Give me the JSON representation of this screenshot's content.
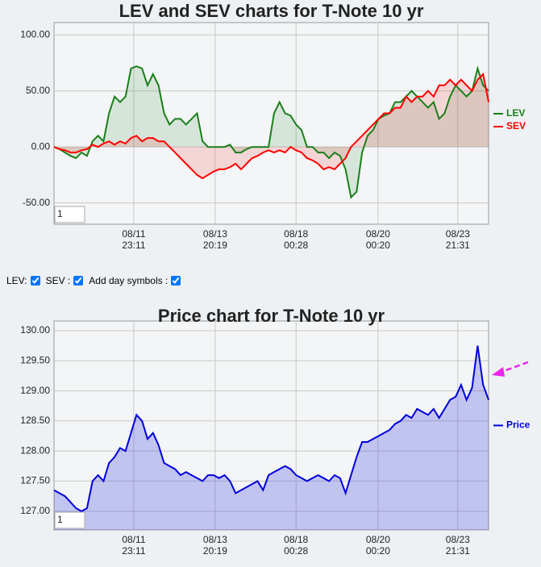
{
  "chart_data": [
    {
      "type": "line",
      "title": "LEV and SEV charts for T-Note 10 yr",
      "range_input": "1",
      "xlim": [
        0,
        79
      ],
      "xticks": [
        {
          "value": 14.5,
          "label": [
            "08/11",
            "23:11"
          ]
        },
        {
          "value": 29.3,
          "label": [
            "08/13",
            "20:19"
          ]
        },
        {
          "value": 44,
          "label": [
            "08/18",
            "00:28"
          ]
        },
        {
          "value": 58.9,
          "label": [
            "08/20",
            "00:20"
          ]
        },
        {
          "value": 73.4,
          "label": [
            "08/23",
            "21:31"
          ]
        }
      ],
      "ylim": [
        -69,
        111
      ],
      "yticks": [
        {
          "value": -50,
          "label": "-50.00"
        },
        {
          "value": 0,
          "label": "0.00"
        },
        {
          "value": 50,
          "label": "50.00"
        },
        {
          "value": 100,
          "label": "100.00"
        }
      ],
      "grid": true,
      "legend": "right",
      "fill": true,
      "series": [
        {
          "name": "LEV",
          "color": "#1a7f1a",
          "values": [
            0,
            -2,
            -5,
            -8,
            -10,
            -5,
            -8,
            5,
            10,
            5,
            30,
            45,
            40,
            45,
            70,
            72,
            70,
            55,
            65,
            55,
            30,
            20,
            25,
            25,
            20,
            25,
            30,
            5,
            0,
            0,
            0,
            0,
            2,
            -5,
            -5,
            -2,
            0,
            0,
            0,
            0,
            30,
            40,
            30,
            28,
            20,
            15,
            0,
            0,
            -5,
            -5,
            -10,
            -5,
            -8,
            -20,
            -45,
            -40,
            -5,
            10,
            15,
            25,
            28,
            30,
            40,
            40,
            45,
            50,
            45,
            40,
            35,
            40,
            25,
            30,
            45,
            55,
            50,
            45,
            50,
            70,
            55,
            50
          ]
        },
        {
          "name": "SEV",
          "color": "#ff0000",
          "values": [
            0,
            -2,
            -3,
            -5,
            -5,
            -3,
            -2,
            2,
            0,
            3,
            5,
            2,
            5,
            3,
            8,
            10,
            5,
            8,
            8,
            5,
            5,
            0,
            -5,
            -10,
            -15,
            -20,
            -25,
            -28,
            -25,
            -22,
            -20,
            -20,
            -18,
            -15,
            -20,
            -15,
            -10,
            -8,
            -5,
            -3,
            -5,
            -3,
            -5,
            0,
            -3,
            -5,
            -10,
            -12,
            -15,
            -20,
            -18,
            -20,
            -15,
            -10,
            0,
            5,
            10,
            15,
            20,
            25,
            30,
            30,
            35,
            35,
            45,
            40,
            45,
            45,
            50,
            45,
            55,
            55,
            60,
            55,
            60,
            55,
            50,
            60,
            65,
            40
          ]
        }
      ]
    },
    {
      "type": "area",
      "title": "Price chart for T-Note 10 yr",
      "range_input": "1",
      "xlim": [
        0,
        79
      ],
      "xticks": [
        {
          "value": 14.5,
          "label": [
            "08/11",
            "23:11"
          ]
        },
        {
          "value": 29.3,
          "label": [
            "08/13",
            "20:19"
          ]
        },
        {
          "value": 44,
          "label": [
            "08/18",
            "00:28"
          ]
        },
        {
          "value": 58.9,
          "label": [
            "08/20",
            "00:20"
          ]
        },
        {
          "value": 73.4,
          "label": [
            "08/23",
            "21:31"
          ]
        }
      ],
      "ylim": [
        126.69,
        130.16
      ],
      "yticks": [
        {
          "value": 127,
          "label": "127.00"
        },
        {
          "value": 127.5,
          "label": "127.50"
        },
        {
          "value": 128,
          "label": "128.00"
        },
        {
          "value": 128.5,
          "label": "128.50"
        },
        {
          "value": 129,
          "label": "129.00"
        },
        {
          "value": 129.5,
          "label": "129.50"
        },
        {
          "value": 130,
          "label": "130.00"
        }
      ],
      "grid": true,
      "legend": "right",
      "fill": true,
      "series": [
        {
          "name": "Price",
          "color": "#0000dd",
          "values": [
            127.35,
            127.3,
            127.25,
            127.15,
            127.05,
            127.0,
            127.05,
            127.5,
            127.6,
            127.5,
            127.8,
            127.9,
            128.05,
            128.0,
            128.3,
            128.6,
            128.5,
            128.2,
            128.3,
            128.1,
            127.8,
            127.75,
            127.7,
            127.6,
            127.65,
            127.6,
            127.55,
            127.5,
            127.6,
            127.6,
            127.55,
            127.6,
            127.5,
            127.3,
            127.35,
            127.4,
            127.45,
            127.5,
            127.35,
            127.6,
            127.65,
            127.7,
            127.75,
            127.7,
            127.6,
            127.55,
            127.5,
            127.55,
            127.6,
            127.55,
            127.5,
            127.6,
            127.55,
            127.3,
            127.6,
            127.9,
            128.15,
            128.15,
            128.2,
            128.25,
            128.3,
            128.35,
            128.45,
            128.5,
            128.6,
            128.55,
            128.7,
            128.65,
            128.6,
            128.7,
            128.55,
            128.7,
            128.85,
            128.9,
            129.1,
            128.85,
            129.05,
            129.75,
            129.1,
            128.85
          ]
        }
      ]
    }
  ],
  "controls": [
    {
      "label": "LEV:",
      "checked": true
    },
    {
      "label": "SEV :",
      "checked": true
    },
    {
      "label": "Add day symbols :",
      "checked": true
    }
  ]
}
